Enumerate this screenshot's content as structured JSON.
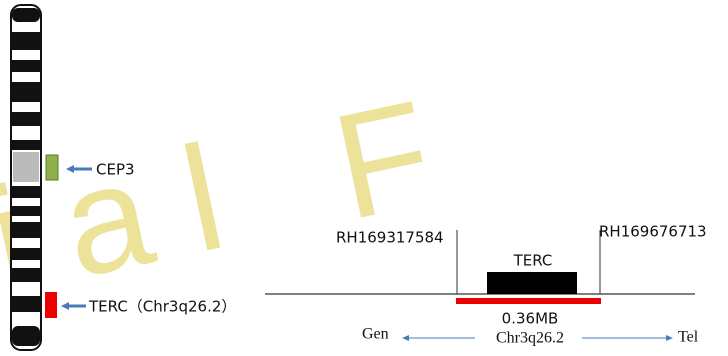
{
  "watermark": "ial F",
  "chromosome": {
    "probes": [
      {
        "label": "CEP3"
      },
      {
        "label": "TERC（Chr3q26.2）"
      }
    ]
  },
  "locus": {
    "left_marker": "RH169317584",
    "right_marker": "RH169676713",
    "gene": "TERC",
    "size": "0.36MB",
    "orientation": {
      "left": "Gen",
      "center": "Chr3q26.2",
      "right": "Tel"
    }
  }
}
